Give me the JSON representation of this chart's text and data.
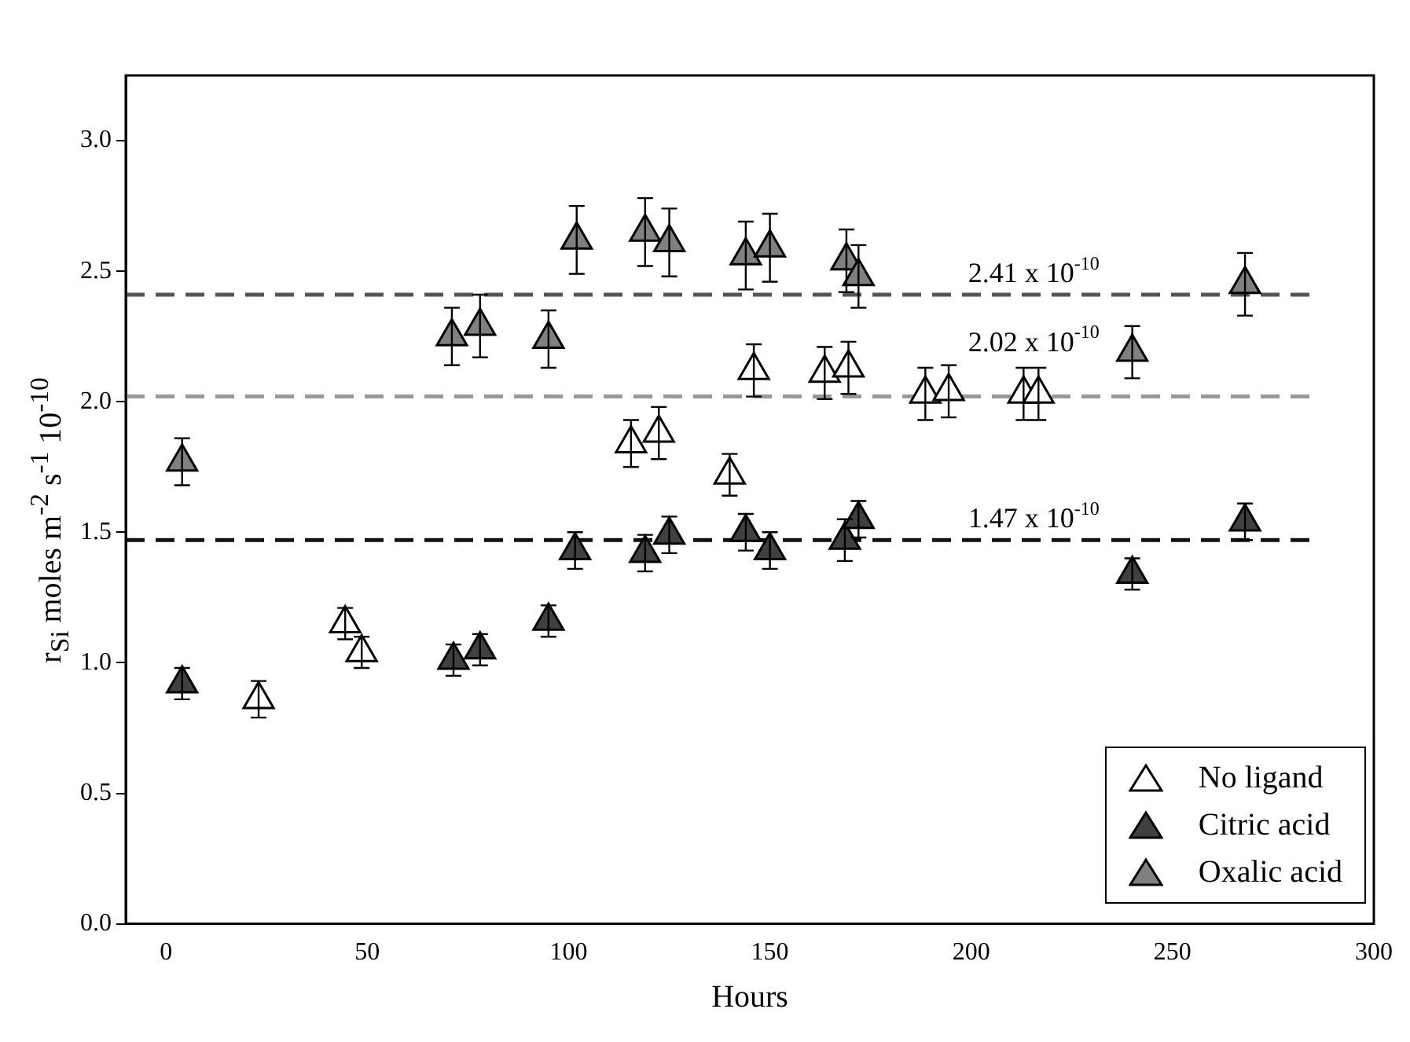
{
  "chart_data": {
    "type": "scatter",
    "xlabel": "Hours",
    "ylabel": "r$_{Si}$ moles m$^{-2}$ s$^{-1}$ 10$^{-10}$",
    "xlim": [
      -10,
      300
    ],
    "xticks": [
      0,
      50,
      100,
      150,
      200,
      250,
      300
    ],
    "ylim": [
      0,
      3.25
    ],
    "yticks": [
      {
        "value": 0,
        "label": "0.0"
      },
      0.5,
      {
        "value": 1,
        "label": "1.0"
      },
      1.5,
      {
        "value": 2,
        "label": "2.0"
      },
      2.5,
      {
        "value": 3,
        "label": "3.0"
      }
    ],
    "grid": false,
    "legend": "bottom right",
    "marker": "triangle",
    "series": [
      {
        "name": "No ligand",
        "color": "#ffffff",
        "x": [
          23,
          44.5,
          48.6,
          115.5,
          122.4,
          140,
          146,
          163.6,
          169.5,
          188.6,
          194.4,
          213,
          216.7
        ],
        "values": [
          0.86,
          1.15,
          1.04,
          1.84,
          1.88,
          1.72,
          2.12,
          2.11,
          2.13,
          2.03,
          2.04,
          2.03,
          2.03
        ],
        "errors": [
          0.07,
          0.06,
          0.06,
          0.09,
          0.1,
          0.08,
          0.1,
          0.1,
          0.1,
          0.1,
          0.1,
          0.1,
          0.1
        ]
      },
      {
        "name": "Citric acid",
        "color": "#404040",
        "x": [
          4,
          71.4,
          78,
          95,
          101.6,
          119,
          125,
          144,
          150,
          168.6,
          172,
          240,
          268
        ],
        "values": [
          0.92,
          1.01,
          1.05,
          1.16,
          1.43,
          1.42,
          1.49,
          1.5,
          1.43,
          1.47,
          1.55,
          1.34,
          1.54
        ],
        "errors": [
          0.06,
          0.06,
          0.06,
          0.06,
          0.07,
          0.07,
          0.07,
          0.07,
          0.07,
          0.08,
          0.07,
          0.06,
          0.07
        ]
      },
      {
        "name": "Oxalic acid",
        "color": "#808080",
        "x": [
          4,
          71,
          78,
          95,
          102,
          119,
          125,
          144,
          150,
          169,
          172,
          240,
          268
        ],
        "values": [
          1.77,
          2.25,
          2.29,
          2.24,
          2.62,
          2.65,
          2.61,
          2.56,
          2.59,
          2.54,
          2.48,
          2.19,
          2.45
        ],
        "errors": [
          0.09,
          0.11,
          0.12,
          0.11,
          0.13,
          0.13,
          0.13,
          0.13,
          0.13,
          0.12,
          0.12,
          0.1,
          0.12
        ]
      }
    ],
    "ref_lines": [
      {
        "axis": "y",
        "value": 2.41,
        "label": "2.41 x 10$^{-10}$",
        "color": "#555555",
        "line_style": "dashed"
      },
      {
        "axis": "y",
        "value": 2.02,
        "label": "2.02 x 10$^{-10}$",
        "color": "#999999",
        "line_style": "dashed"
      },
      {
        "axis": "y",
        "value": 1.47,
        "label": "1.47 x 10$^{-10}$",
        "color": "#111111",
        "line_style": "dashed"
      }
    ]
  }
}
